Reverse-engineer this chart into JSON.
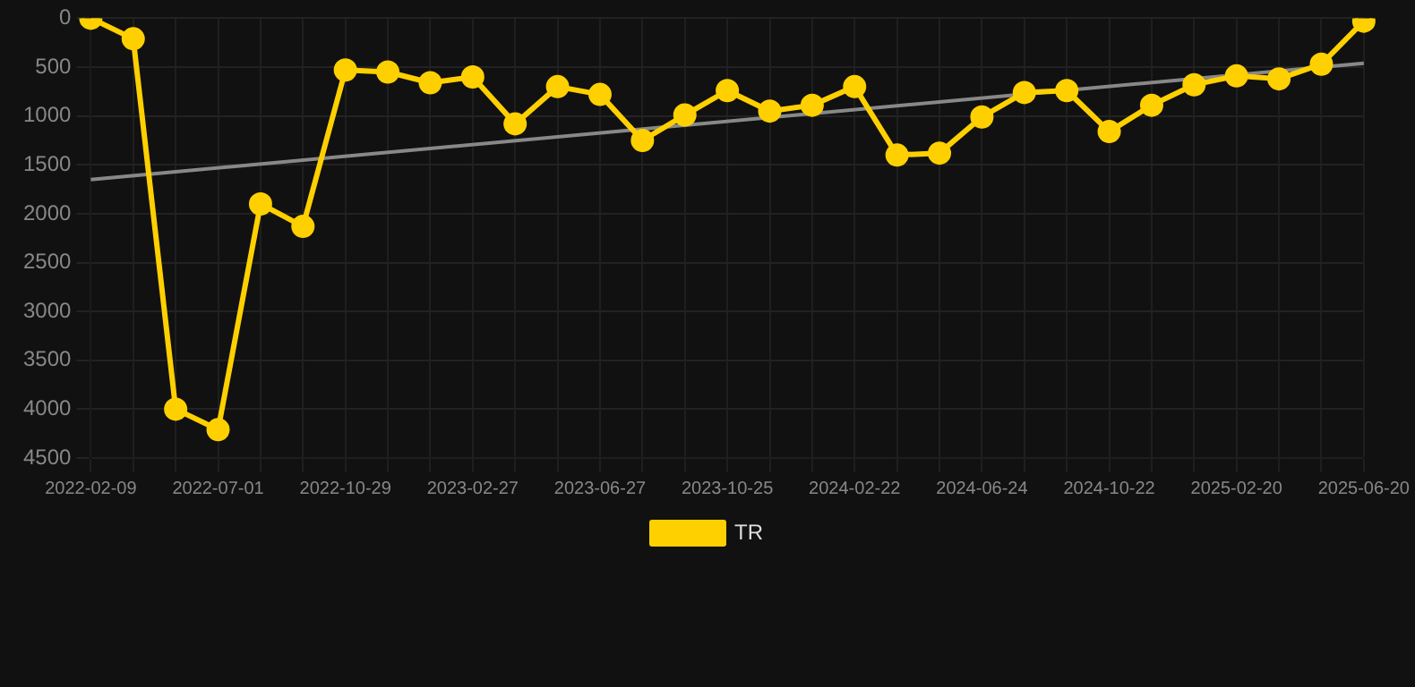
{
  "chart_data": {
    "type": "line",
    "categories": [
      "2022-02-09",
      null,
      null,
      "2022-07-01",
      null,
      null,
      "2022-10-29",
      null,
      null,
      "2023-02-27",
      null,
      null,
      "2023-06-27",
      null,
      null,
      "2023-10-25",
      null,
      null,
      "2024-02-22",
      null,
      null,
      "2024-06-24",
      null,
      null,
      "2024-10-22",
      null,
      null,
      "2025-02-20",
      null,
      null,
      "2025-06-20"
    ],
    "series": [
      {
        "name": "TR",
        "color": "#ffd000",
        "marker": "circle",
        "values": [
          0,
          210,
          4000,
          4210,
          1900,
          2130,
          530,
          550,
          660,
          600,
          1080,
          700,
          780,
          1250,
          990,
          740,
          950,
          890,
          700,
          1400,
          1380,
          1010,
          760,
          740,
          1160,
          890,
          680,
          590,
          620,
          470,
          30
        ]
      },
      {
        "type": "line",
        "color": "#888888",
        "marker": "none",
        "values": [
          1650,
          null,
          null,
          null,
          null,
          null,
          null,
          null,
          null,
          null,
          null,
          null,
          null,
          null,
          null,
          null,
          null,
          null,
          null,
          null,
          null,
          null,
          null,
          null,
          null,
          null,
          null,
          null,
          null,
          null,
          460
        ]
      }
    ],
    "ylim": [
      4500,
      0
    ],
    "yticks": [
      0,
      500,
      1000,
      1500,
      2000,
      2500,
      3000,
      3500,
      4000,
      4500
    ],
    "grid": true,
    "legend": "bottom"
  }
}
